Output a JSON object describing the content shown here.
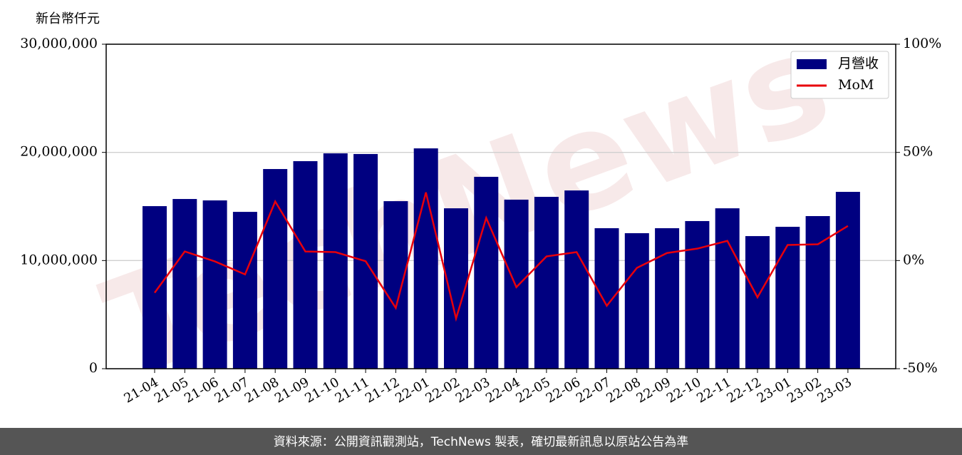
{
  "chart_data": {
    "type": "bar-line",
    "y_label": "新台幣仟元",
    "watermark": "TechNews",
    "footer": "資料來源：公開資訊觀測站，TechNews 製表，確切最新訊息以原站公告為準",
    "categories": [
      "21-04",
      "21-05",
      "21-06",
      "21-07",
      "21-08",
      "21-09",
      "21-10",
      "21-11",
      "21-12",
      "22-01",
      "22-02",
      "22-03",
      "22-04",
      "22-05",
      "22-06",
      "22-07",
      "22-08",
      "22-09",
      "22-10",
      "22-11",
      "22-12",
      "23-01",
      "23-02",
      "23-03"
    ],
    "series": [
      {
        "name": "月營收",
        "type": "bar",
        "color": "#000080",
        "values": [
          15030000,
          15690000,
          15560000,
          14500000,
          18460000,
          19190000,
          19910000,
          19850000,
          15490000,
          20370000,
          14830000,
          17740000,
          15630000,
          15890000,
          16480000,
          12990000,
          12530000,
          12990000,
          13650000,
          14830000,
          12260000,
          13120000,
          14110000,
          16350000
        ]
      },
      {
        "name": "MoM",
        "type": "line",
        "axis": "y2",
        "color": "#e8000b",
        "values": [
          -14.9,
          4.2,
          -0.4,
          -6.4,
          27.3,
          4.2,
          3.9,
          -0.3,
          -21.9,
          31.5,
          -26.8,
          19.7,
          -12.3,
          1.9,
          3.9,
          -20.9,
          -3.4,
          3.5,
          5.5,
          9.1,
          -17.0,
          7.2,
          7.5,
          16.0
        ]
      }
    ],
    "ylim": [
      0,
      30000000
    ],
    "yticks": [
      0,
      {
        "value": 10000000,
        "label": "10,000,000"
      },
      {
        "value": 20000000,
        "label": "20,000,000"
      },
      {
        "value": 30000000,
        "label": "30,000,000"
      }
    ],
    "y2lim": [
      -50,
      100
    ],
    "y2ticks": [
      {
        "value": -50,
        "label": "-50%"
      },
      {
        "value": 0,
        "label": "0%"
      },
      {
        "value": 50,
        "label": "50%"
      },
      {
        "value": 100,
        "label": "100%"
      }
    ],
    "grid": true,
    "legend": "upper right"
  }
}
